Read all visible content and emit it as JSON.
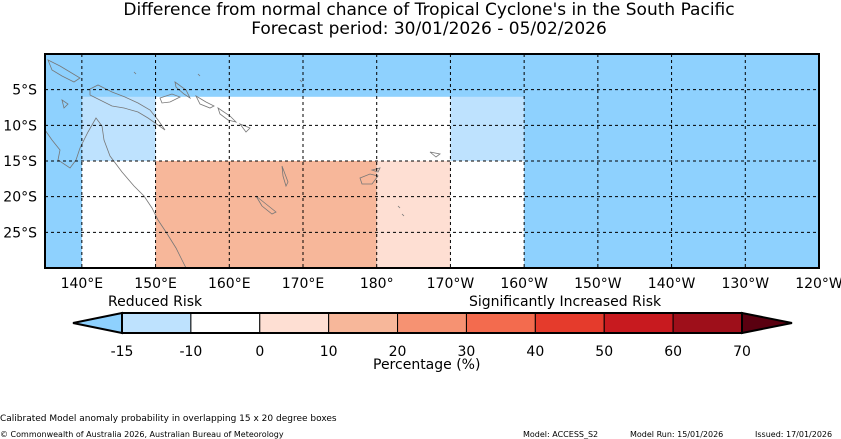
{
  "title": {
    "line1": "Difference from normal chance of Tropical Cyclone's in the South Pacific",
    "line2": "Forecast period: 30/01/2026 - 05/02/2026"
  },
  "map": {
    "lon_range": [
      135,
      240
    ],
    "lat_range": [
      -30,
      0
    ],
    "lat_ticks": [
      {
        "lat": -5,
        "label": "5°S"
      },
      {
        "lat": -10,
        "label": "10°S"
      },
      {
        "lat": -15,
        "label": "15°S"
      },
      {
        "lat": -20,
        "label": "20°S"
      },
      {
        "lat": -25,
        "label": "25°S"
      }
    ],
    "lon_ticks": [
      {
        "lon": 140,
        "label": "140°E"
      },
      {
        "lon": 150,
        "label": "150°E"
      },
      {
        "lon": 160,
        "label": "160°E"
      },
      {
        "lon": 170,
        "label": "170°E"
      },
      {
        "lon": 180,
        "label": "180°"
      },
      {
        "lon": 190,
        "label": "170°W"
      },
      {
        "lon": 200,
        "label": "160°W"
      },
      {
        "lon": 210,
        "label": "150°W"
      },
      {
        "lon": 220,
        "label": "140°W"
      },
      {
        "lon": 230,
        "label": "130°W"
      },
      {
        "lon": 240,
        "label": "120°W"
      }
    ],
    "default_color": "#8ed1fe",
    "cells": [
      {
        "lon0": 140,
        "lon1": 150,
        "lat0": -15,
        "lat1": -6,
        "color": "#bee2fe"
      },
      {
        "lon0": 150,
        "lon1": 190,
        "lat0": -15,
        "lat1": -6,
        "color": "#ffffff"
      },
      {
        "lon0": 190,
        "lon1": 200,
        "lat0": -15,
        "lat1": -6,
        "color": "#bee2fe"
      },
      {
        "lon0": 140,
        "lon1": 150,
        "lat0": -25,
        "lat1": -15,
        "color": "#ffffff"
      },
      {
        "lon0": 150,
        "lon1": 180,
        "lat0": -25,
        "lat1": -15,
        "color": "#f7b79a"
      },
      {
        "lon0": 180,
        "lon1": 190,
        "lat0": -25,
        "lat1": -15,
        "color": "#fedfd3"
      },
      {
        "lon0": 190,
        "lon1": 200,
        "lat0": -25,
        "lat1": -15,
        "color": "#ffffff"
      },
      {
        "lon0": 140,
        "lon1": 150,
        "lat0": -30,
        "lat1": -25,
        "color": "#ffffff"
      },
      {
        "lon0": 150,
        "lon1": 180,
        "lat0": -30,
        "lat1": -25,
        "color": "#f7b79a"
      },
      {
        "lon0": 180,
        "lon1": 190,
        "lat0": -30,
        "lat1": -25,
        "color": "#fedfd3"
      },
      {
        "lon0": 190,
        "lon1": 200,
        "lat0": -30,
        "lat1": -25,
        "color": "#ffffff"
      }
    ]
  },
  "colorbar": {
    "reduced_label": "Reduced Risk",
    "increased_label": "Significantly Increased Risk",
    "xlabel": "Percentage (%)",
    "under_color": "#8ed1fe",
    "over_color": "#5a0010",
    "bins": [
      {
        "from": -15,
        "to": -10,
        "color": "#bee2fe"
      },
      {
        "from": -10,
        "to": 0,
        "color": "#ffffff"
      },
      {
        "from": 0,
        "to": 10,
        "color": "#fedfd3"
      },
      {
        "from": 10,
        "to": 20,
        "color": "#f7b79a"
      },
      {
        "from": 20,
        "to": 30,
        "color": "#f69272"
      },
      {
        "from": 30,
        "to": 40,
        "color": "#f36b4e"
      },
      {
        "from": 40,
        "to": 50,
        "color": "#e53b2c"
      },
      {
        "from": 50,
        "to": 60,
        "color": "#c81a1f"
      },
      {
        "from": 60,
        "to": 70,
        "color": "#9e0f1a"
      }
    ],
    "tick_labels": [
      "-15",
      "-10",
      "0",
      "10",
      "20",
      "30",
      "40",
      "50",
      "60",
      "70"
    ]
  },
  "footer": {
    "method": "Calibrated Model anomaly probability in overlapping 15 x 20 degree boxes",
    "copyright": "© Commonwealth of Australia 2026, Australian Bureau of Meteorology",
    "model": "Model: ACCESS_S2",
    "model_run": "Model Run: 15/01/2026",
    "issued": "Issued: 17/01/2026"
  }
}
